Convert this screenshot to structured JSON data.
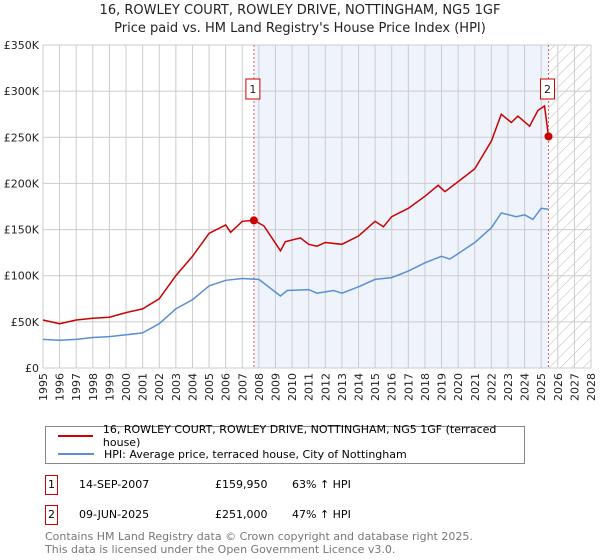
{
  "title": "16, ROWLEY COURT, ROWLEY DRIVE, NOTTINGHAM, NG5 1GF",
  "subtitle": "Price paid vs. HM Land Registry's House Price Index (HPI)",
  "colors": {
    "property": "#cc0000",
    "hpi": "#5b8fd4",
    "shade": "#eef3fc",
    "grid": "#cccccc"
  },
  "chart_data": {
    "type": "line",
    "title": "16, ROWLEY COURT, ROWLEY DRIVE, NOTTINGHAM, NG5 1GF",
    "xlim": [
      1995,
      2028
    ],
    "ylim": [
      0,
      350000
    ],
    "x_ticks": [
      "1995",
      "1996",
      "1997",
      "1998",
      "1999",
      "2000",
      "2001",
      "2002",
      "2003",
      "2004",
      "2005",
      "2006",
      "2007",
      "2008",
      "2009",
      "2010",
      "2011",
      "2012",
      "2013",
      "2014",
      "2015",
      "2016",
      "2017",
      "2018",
      "2019",
      "2020",
      "2021",
      "2022",
      "2023",
      "2024",
      "2025",
      "2026",
      "2027",
      "2028"
    ],
    "y_ticks": [
      {
        "v": 0,
        "label": "£0"
      },
      {
        "v": 50000,
        "label": "£50K"
      },
      {
        "v": 100000,
        "label": "£100K"
      },
      {
        "v": 150000,
        "label": "£150K"
      },
      {
        "v": 200000,
        "label": "£200K"
      },
      {
        "v": 250000,
        "label": "£250K"
      },
      {
        "v": 300000,
        "label": "£300K"
      },
      {
        "v": 350000,
        "label": "£350K"
      }
    ],
    "grid": true,
    "shaded_range": [
      2007.7,
      2025.44
    ],
    "hatched_range": [
      2025.44,
      2028
    ],
    "series": [
      {
        "name": "16, ROWLEY COURT, ROWLEY DRIVE, NOTTINGHAM, NG5 1GF (terraced house)",
        "x": [
          1995,
          1996,
          1997,
          1998,
          1999,
          2000,
          2001,
          2002,
          2003,
          2004,
          2005,
          2006,
          2006.3,
          2007,
          2007.7,
          2008.3,
          2009.3,
          2009.6,
          2010.5,
          2011,
          2011.5,
          2012,
          2013,
          2014,
          2015,
          2015.5,
          2016,
          2017,
          2018,
          2018.8,
          2019.2,
          2020,
          2021,
          2022,
          2022.6,
          2023.2,
          2023.6,
          2024.3,
          2024.8,
          2025.2,
          2025.44
        ],
        "y": [
          52000,
          48000,
          52000,
          54000,
          55000,
          60000,
          64000,
          75000,
          100000,
          121000,
          146000,
          155000,
          147000,
          159000,
          159950,
          154000,
          127000,
          137000,
          141000,
          134000,
          132000,
          136000,
          134000,
          143000,
          159000,
          153000,
          164000,
          173000,
          186000,
          198000,
          191000,
          202000,
          216000,
          246000,
          275000,
          266000,
          273000,
          262000,
          279000,
          284000,
          251000
        ]
      },
      {
        "name": "HPI: Average price, terraced house, City of Nottingham",
        "x": [
          1995,
          1996,
          1997,
          1998,
          1999,
          2000,
          2001,
          2002,
          2003,
          2004,
          2005,
          2006,
          2007,
          2008,
          2009.3,
          2009.7,
          2011,
          2011.5,
          2012.5,
          2013,
          2014,
          2015,
          2016,
          2017,
          2018,
          2019,
          2019.5,
          2020,
          2021,
          2022,
          2022.6,
          2023.5,
          2024,
          2024.5,
          2025,
          2025.44
        ],
        "y": [
          31000,
          30000,
          31000,
          33000,
          34000,
          36000,
          38000,
          48000,
          64000,
          74000,
          89000,
          95000,
          97000,
          96000,
          78000,
          84000,
          85000,
          81000,
          84000,
          81000,
          88000,
          96000,
          98000,
          105000,
          114000,
          121000,
          118000,
          124000,
          136000,
          152000,
          168000,
          164000,
          166000,
          161000,
          173000,
          172000
        ]
      }
    ],
    "markers": [
      {
        "label": "1",
        "x": 2007.7,
        "y": 159950
      },
      {
        "label": "2",
        "x": 2025.44,
        "y": 251000
      }
    ]
  },
  "legend": [
    {
      "label": "16, ROWLEY COURT, ROWLEY DRIVE, NOTTINGHAM, NG5 1GF (terraced house)"
    },
    {
      "label": "HPI: Average price, terraced house, City of Nottingham"
    }
  ],
  "transactions": [
    {
      "num": "1",
      "date": "14-SEP-2007",
      "price": "£159,950",
      "hpi": "63% ↑ HPI"
    },
    {
      "num": "2",
      "date": "09-JUN-2025",
      "price": "£251,000",
      "hpi": "47% ↑ HPI"
    }
  ],
  "footer": {
    "line1": "Contains HM Land Registry data © Crown copyright and database right 2025.",
    "line2": "This data is licensed under the Open Government Licence v3.0."
  }
}
